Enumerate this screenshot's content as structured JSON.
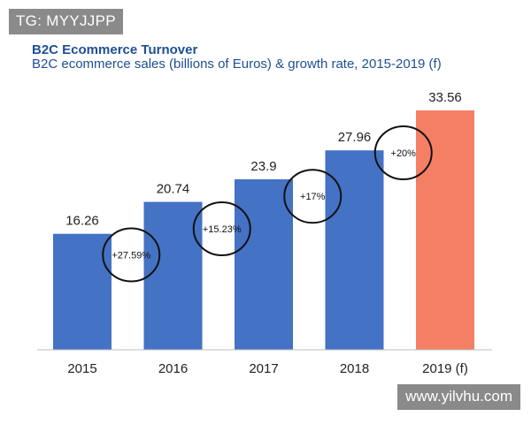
{
  "watermarks": {
    "top": "TG: MYYJJPP",
    "bottom": "www.yilvhu.com"
  },
  "colors": {
    "bar": "#4472c4",
    "forecast": "#f47f65",
    "title": "#1f4f94",
    "axis": "#bfbfbf"
  },
  "chart_data": {
    "type": "bar",
    "title": "B2C Ecommerce Turnover",
    "subtitle": "B2C ecommerce sales (billions of Euros) & growth rate, 2015-2019 (f)",
    "categories": [
      "2015",
      "2016",
      "2017",
      "2018",
      "2019 (f)"
    ],
    "values": [
      16.26,
      20.74,
      23.9,
      27.96,
      33.56
    ],
    "value_labels": [
      "16.26",
      "20.74",
      "23.9",
      "27.96",
      "33.56"
    ],
    "forecast": [
      false,
      false,
      false,
      false,
      true
    ],
    "growth_labels": [
      "+27.59%",
      "+15.23%",
      "+17%",
      "+20%"
    ],
    "xlabel": "",
    "ylabel": "",
    "ylim": [
      0,
      34
    ],
    "grid": false
  }
}
